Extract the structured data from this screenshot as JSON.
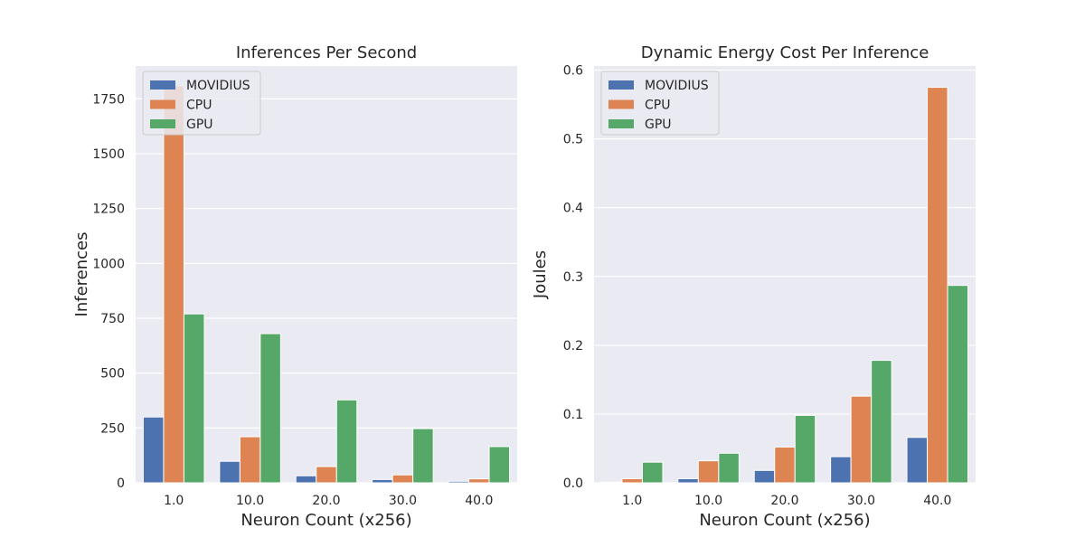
{
  "colors": {
    "background": "#eaeaf2",
    "grid": "#ffffff",
    "MOVIDIUS": "#4c72b0",
    "CPU": "#dd8452",
    "GPU": "#55a868",
    "errorbar": "#262626"
  },
  "chart_data": [
    {
      "type": "bar",
      "title": "Inferences Per Second",
      "xlabel": "Neuron Count (x256)",
      "ylabel": "Inferences",
      "categories": [
        "1.0",
        "10.0",
        "20.0",
        "30.0",
        "40.0"
      ],
      "ylim": [
        0,
        1900
      ],
      "yticks": [
        0,
        250,
        500,
        750,
        1000,
        1250,
        1500,
        1750
      ],
      "grid": true,
      "legend_position": "top-left",
      "series": [
        {
          "name": "MOVIDIUS",
          "values": [
            300,
            98,
            32,
            15,
            7
          ]
        },
        {
          "name": "CPU",
          "values": [
            1810,
            210,
            74,
            36,
            18
          ]
        },
        {
          "name": "GPU",
          "values": [
            770,
            680,
            378,
            247,
            165
          ]
        }
      ]
    },
    {
      "type": "bar",
      "title": "Dynamic Energy Cost Per Inference",
      "xlabel": "Neuron Count (x256)",
      "ylabel": "Joules",
      "categories": [
        "1.0",
        "10.0",
        "20.0",
        "30.0",
        "40.0"
      ],
      "ylim": [
        0,
        0.606
      ],
      "yticks": [
        0.0,
        0.1,
        0.2,
        0.3,
        0.4,
        0.5,
        0.6
      ],
      "grid": true,
      "legend_position": "top-left",
      "series": [
        {
          "name": "MOVIDIUS",
          "values": [
            0.001,
            0.006,
            0.018,
            0.038,
            0.066
          ]
        },
        {
          "name": "CPU",
          "values": [
            0.006,
            0.032,
            0.052,
            0.126,
            0.575
          ]
        },
        {
          "name": "GPU",
          "values": [
            0.03,
            0.043,
            0.098,
            0.178,
            0.287
          ]
        }
      ]
    }
  ]
}
